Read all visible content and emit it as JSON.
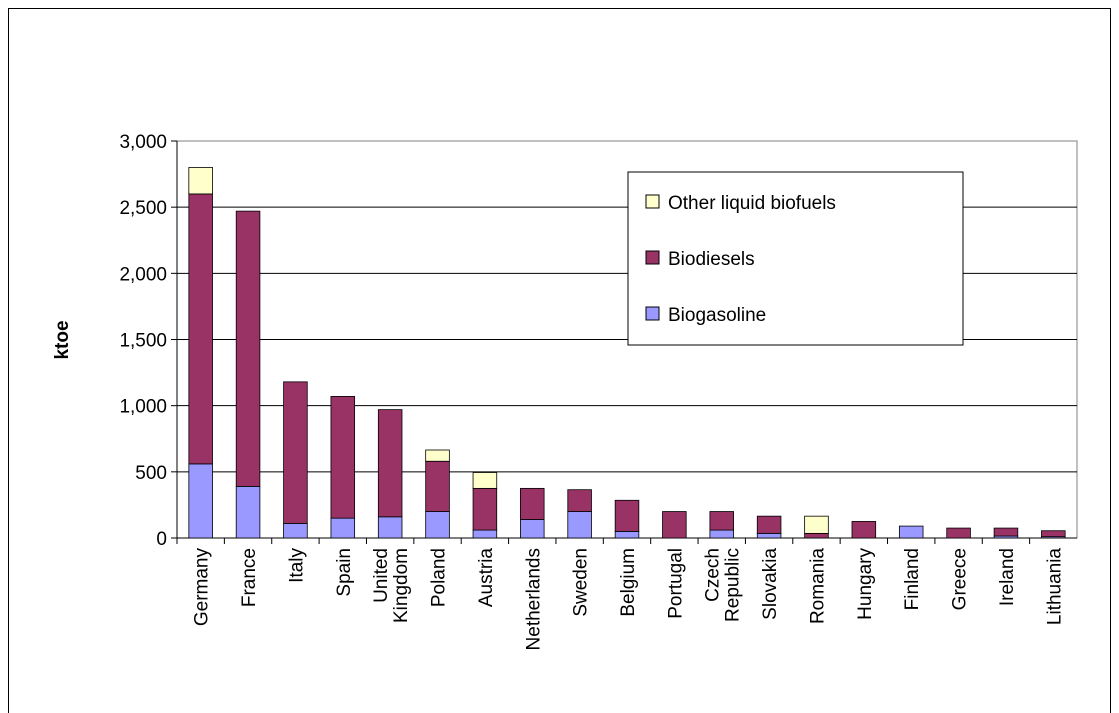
{
  "chart_data": {
    "type": "stacked-bar",
    "y_label": "ktoe",
    "categories": [
      "Germany",
      "France",
      "Italy",
      "Spain",
      "United Kingdom",
      "Poland",
      "Austria",
      "Netherlands",
      "Sweden",
      "Belgium",
      "Portugal",
      "Czech Republic",
      "Slovakia",
      "Romania",
      "Hungary",
      "Finland",
      "Greece",
      "Ireland",
      "Lithuania"
    ],
    "series": [
      {
        "name": "Biogasoline",
        "color": "#9999ff",
        "values": [
          560,
          390,
          110,
          150,
          160,
          200,
          60,
          140,
          200,
          50,
          0,
          60,
          35,
          0,
          0,
          90,
          0,
          15,
          10
        ]
      },
      {
        "name": "Biodiesels",
        "color": "#993366",
        "values": [
          2040,
          2080,
          1070,
          920,
          810,
          380,
          315,
          235,
          165,
          235,
          200,
          140,
          130,
          35,
          125,
          0,
          75,
          60,
          45
        ]
      },
      {
        "name": "Other liquid biofuels",
        "color": "#ffffcc",
        "values": [
          200,
          0,
          0,
          0,
          0,
          85,
          120,
          0,
          0,
          0,
          0,
          0,
          0,
          130,
          0,
          0,
          0,
          0,
          0
        ]
      }
    ],
    "ylim": [
      0,
      3000
    ],
    "yticks": [
      0,
      500,
      {
        "value": 1000,
        "label": "1,000"
      },
      {
        "value": 1500,
        "label": "1,500"
      },
      {
        "value": 2000,
        "label": "2,000"
      },
      {
        "value": 2500,
        "label": "2,500"
      },
      {
        "value": 3000,
        "label": "3,000"
      }
    ],
    "grid": true,
    "legend": "top-right"
  }
}
